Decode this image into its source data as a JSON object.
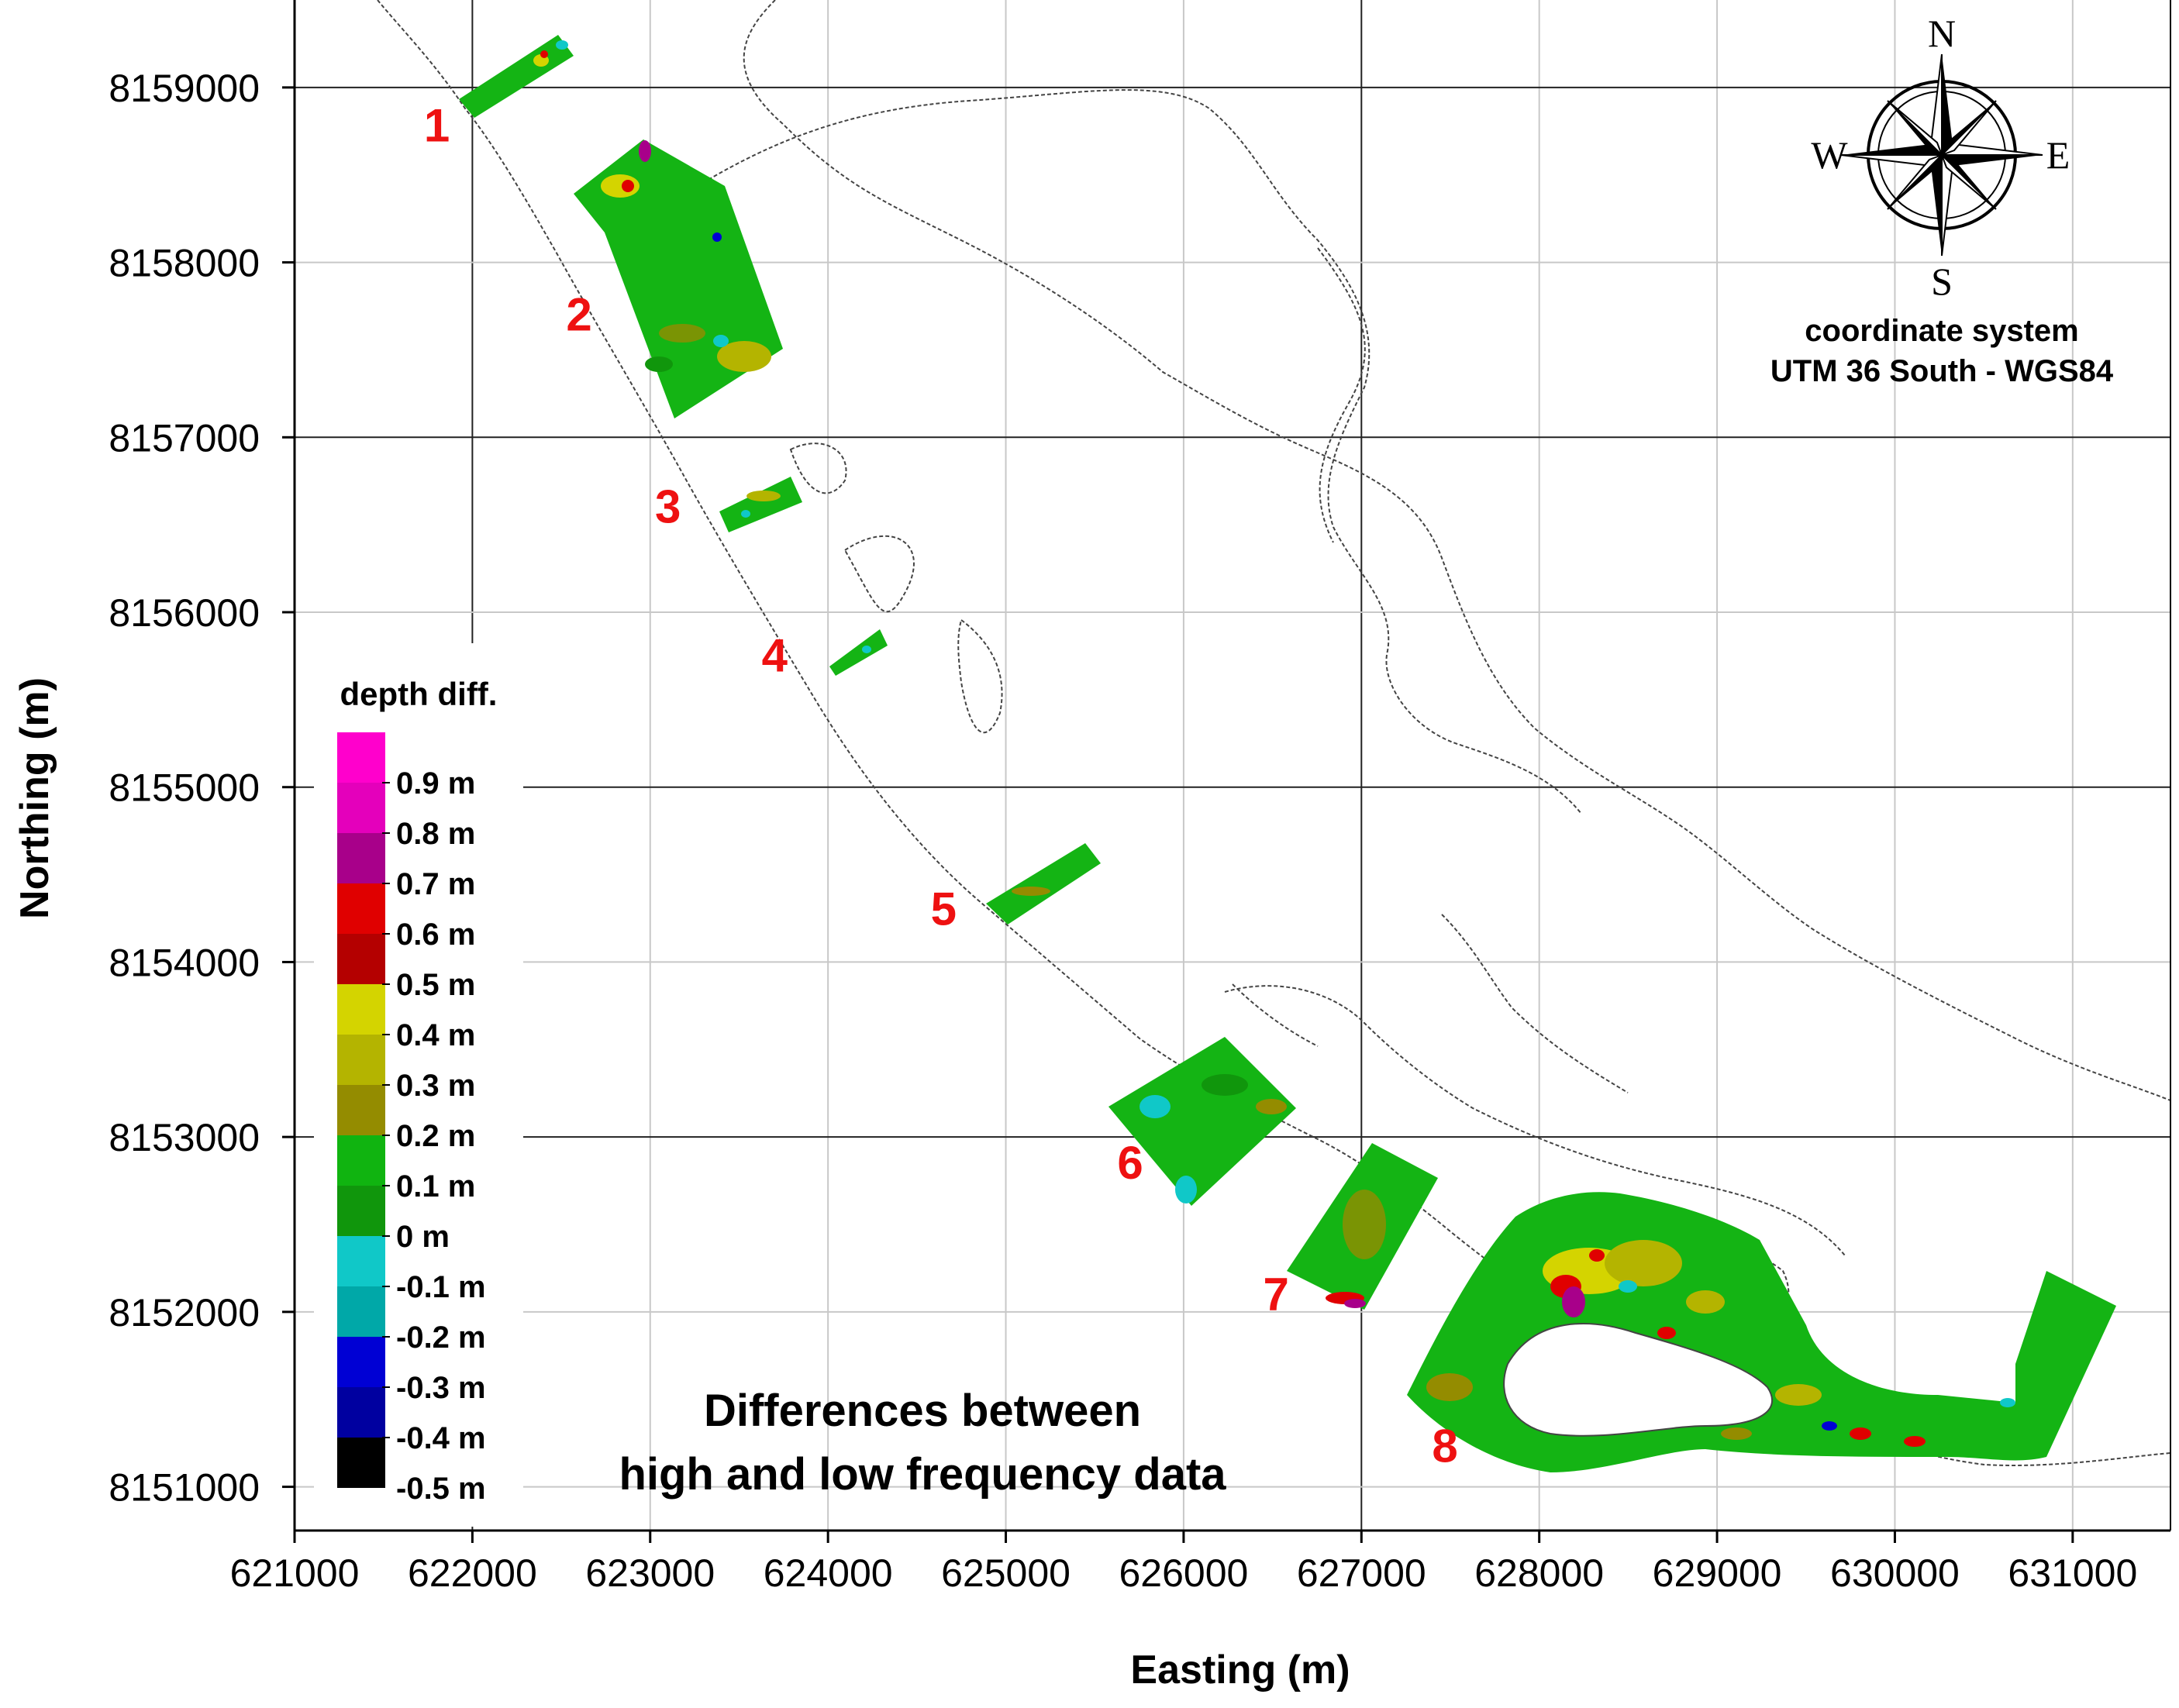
{
  "map": {
    "x_axis": {
      "title": "Easting (m)",
      "ticks": [
        621000,
        622000,
        623000,
        624000,
        625000,
        626000,
        627000,
        628000,
        629000,
        630000,
        631000
      ],
      "range": [
        621000,
        631550
      ]
    },
    "y_axis": {
      "title": "Northing (m)",
      "ticks": [
        8151000,
        8152000,
        8153000,
        8154000,
        8155000,
        8156000,
        8157000,
        8158000,
        8159000
      ],
      "range": [
        8150750,
        8159500
      ]
    },
    "grid": true,
    "coordinate_system": {
      "line1": "coordinate system",
      "line2": "UTM 36 South - WGS84"
    },
    "compass": {
      "n": "N",
      "s": "S",
      "e": "E",
      "w": "W"
    },
    "caption": {
      "line1": "Differences between",
      "line2": "high and low frequency data"
    },
    "zones": [
      {
        "label": "1",
        "label_easting": 621800,
        "label_northing": 8158780
      },
      {
        "label": "2",
        "label_easting": 622600,
        "label_northing": 8157700
      },
      {
        "label": "3",
        "label_easting": 623100,
        "label_northing": 8156600
      },
      {
        "label": "4",
        "label_easting": 623700,
        "label_northing": 8155750
      },
      {
        "label": "5",
        "label_easting": 624650,
        "label_northing": 8154300
      },
      {
        "label": "6",
        "label_easting": 625700,
        "label_northing": 8152850
      },
      {
        "label": "7",
        "label_easting": 626520,
        "label_northing": 8152100
      },
      {
        "label": "8",
        "label_easting": 627470,
        "label_northing": 8151230
      }
    ]
  },
  "legend": {
    "title": "depth diff.",
    "bands": [
      {
        "label": "",
        "color": "#ff00cc"
      },
      {
        "label": "0.9 m",
        "color": "#e400bb"
      },
      {
        "label": "0.8 m",
        "color": "#a8008a"
      },
      {
        "label": "0.7 m",
        "color": "#e00000"
      },
      {
        "label": "0.6 m",
        "color": "#b40000"
      },
      {
        "label": "0.5 m",
        "color": "#d4d400"
      },
      {
        "label": "0.4 m",
        "color": "#b4b400"
      },
      {
        "label": "0.3 m",
        "color": "#948c00"
      },
      {
        "label": "0.2 m",
        "color": "#10b410"
      },
      {
        "label": "0.1 m",
        "color": "#10960c"
      },
      {
        "label": "0 m",
        "color": "#10c8c8"
      },
      {
        "label": "-0.1 m",
        "color": "#00a8a8"
      },
      {
        "label": "-0.2 m",
        "color": "#0000d4"
      },
      {
        "label": "-0.3 m",
        "color": "#0000a0"
      },
      {
        "label": "-0.4 m",
        "color": "#000000"
      }
    ],
    "last_label": "-0.5 m"
  }
}
